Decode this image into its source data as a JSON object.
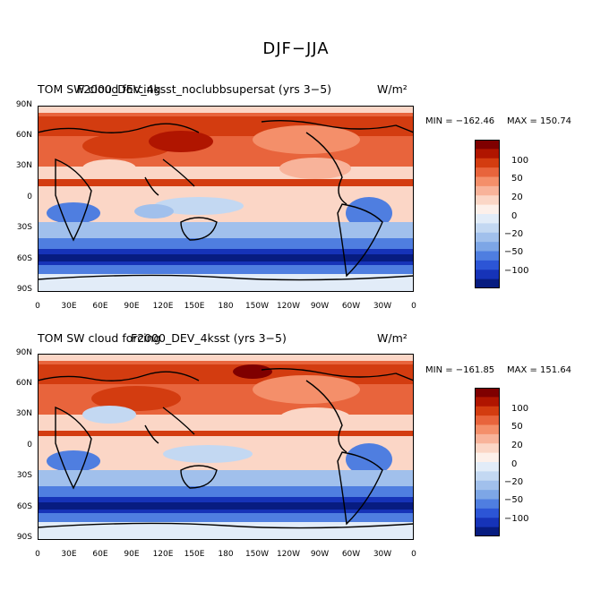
{
  "figure": {
    "title": "DJF−JJA"
  },
  "panels": [
    {
      "id": "top",
      "title_left": "TOM SW cloud forcing",
      "title_overlap": "F2000_DEV_4ksst_noclubbsupersat (yrs 3−5)",
      "units": "W/m²",
      "min_label": "MIN = −162.46",
      "max_label": "MAX = 150.74"
    },
    {
      "id": "bottom",
      "title_left": "TOM SW cloud forcing",
      "title_overlap": "F2000_DEV_4ksst (yrs 3−5)",
      "units": "W/m²",
      "min_label": "MIN = −161.85",
      "max_label": "MAX = 151.64"
    }
  ],
  "lat_labels": [
    "90N",
    "60N",
    "30N",
    "0",
    "30S",
    "60S",
    "90S"
  ],
  "lon_labels": [
    "0",
    "30E",
    "60E",
    "90E",
    "120E",
    "150E",
    "180",
    "150W",
    "120W",
    "90W",
    "60W",
    "30W",
    "0"
  ],
  "colorbar": {
    "labels": [
      "100",
      "50",
      "20",
      "0",
      "−20",
      "−50",
      "−100"
    ],
    "colors": [
      "#7f0000",
      "#b01500",
      "#d33c10",
      "#e8643c",
      "#f48f6a",
      "#f8b39a",
      "#fbd6c6",
      "#fdf0ea",
      "#e2ecf8",
      "#c3d8f2",
      "#a1c0ec",
      "#7da6e6",
      "#4f7ee0",
      "#2c55d6",
      "#1633b8",
      "#071c80"
    ]
  }
}
